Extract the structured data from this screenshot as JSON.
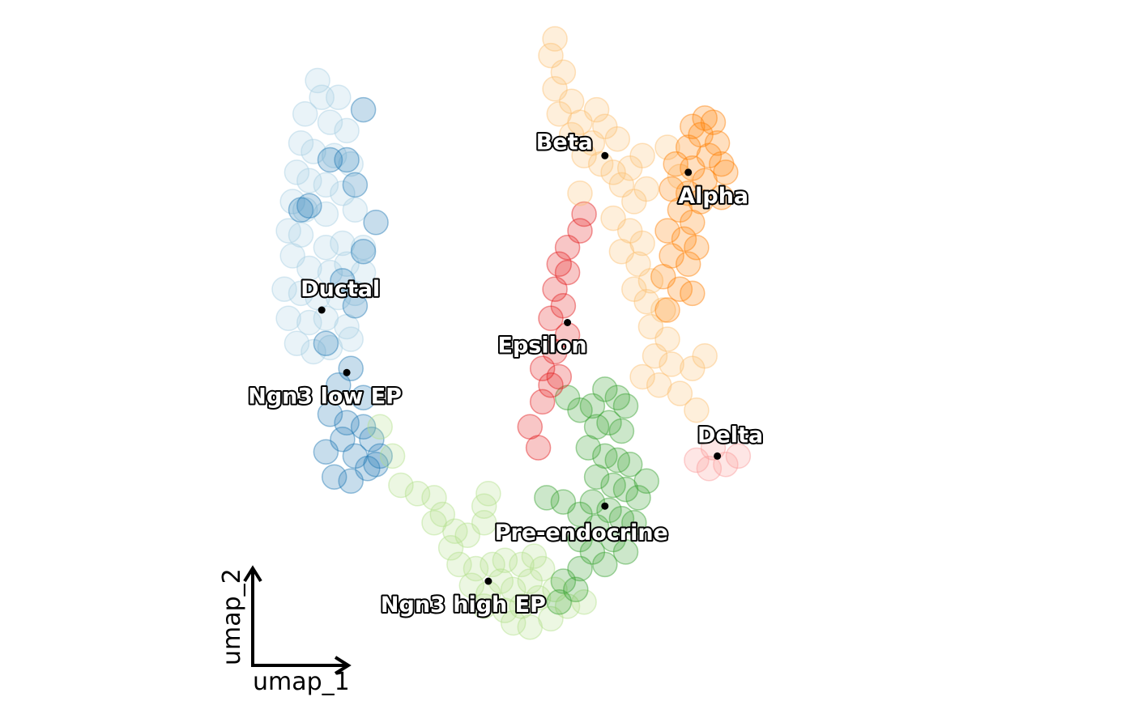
{
  "chart_data": {
    "type": "scatter",
    "title": "",
    "xlabel": "umap_1",
    "ylabel": "umap_2",
    "xlim": [
      -7,
      10
    ],
    "ylim": [
      -7.6,
      8
    ],
    "grid": false,
    "legend": "on data",
    "point_alpha": 0.25,
    "clusters": [
      {
        "name": "Ductal",
        "color": "#a6cee3",
        "center": [
          -4.0,
          1.5
        ],
        "points": [
          [
            -4.1,
            7.0
          ],
          [
            -4.0,
            6.6
          ],
          [
            -3.6,
            6.6
          ],
          [
            -4.4,
            6.2
          ],
          [
            -3.8,
            6.0
          ],
          [
            -3.4,
            5.8
          ],
          [
            -4.5,
            5.5
          ],
          [
            -4.2,
            5.3
          ],
          [
            -3.7,
            5.2
          ],
          [
            -3.3,
            5.0
          ],
          [
            -4.6,
            4.8
          ],
          [
            -4.3,
            4.6
          ],
          [
            -3.9,
            4.5
          ],
          [
            -3.5,
            4.3
          ],
          [
            -4.7,
            4.1
          ],
          [
            -4.4,
            3.9
          ],
          [
            -3.9,
            3.8
          ],
          [
            -3.2,
            3.9
          ],
          [
            -4.8,
            3.4
          ],
          [
            -4.5,
            3.3
          ],
          [
            -3.9,
            3.0
          ],
          [
            -3.5,
            3.1
          ],
          [
            -3.0,
            3.0
          ],
          [
            -4.7,
            2.8
          ],
          [
            -4.3,
            2.5
          ],
          [
            -3.8,
            2.4
          ],
          [
            -3.4,
            2.6
          ],
          [
            -3.0,
            2.4
          ],
          [
            -4.9,
            2.0
          ],
          [
            -4.5,
            1.9
          ],
          [
            -4.1,
            1.8
          ],
          [
            -3.6,
            1.8
          ],
          [
            -3.2,
            1.9
          ],
          [
            -4.8,
            1.3
          ],
          [
            -4.3,
            1.2
          ],
          [
            -3.9,
            1.3
          ],
          [
            -3.4,
            1.1
          ],
          [
            -4.6,
            0.7
          ],
          [
            -4.2,
            0.5
          ],
          [
            -3.8,
            0.6
          ],
          [
            -3.3,
            0.8
          ]
        ]
      },
      {
        "name": "Ngn3 low EP",
        "color": "#1f78b4",
        "center": [
          -3.4,
          0.0
        ],
        "points": [
          [
            -3.0,
            6.3
          ],
          [
            -3.4,
            5.1
          ],
          [
            -3.8,
            5.1
          ],
          [
            -3.2,
            4.5
          ],
          [
            -4.5,
            3.9
          ],
          [
            -4.3,
            4.0
          ],
          [
            -2.7,
            3.6
          ],
          [
            -3.0,
            2.9
          ],
          [
            -3.5,
            2.2
          ],
          [
            -3.2,
            1.6
          ],
          [
            -3.9,
            0.7
          ],
          [
            -3.3,
            0.1
          ],
          [
            -3.6,
            -0.3
          ],
          [
            -3.0,
            -0.6
          ],
          [
            -3.8,
            -1.0
          ],
          [
            -3.4,
            -1.2
          ],
          [
            -3.0,
            -1.3
          ],
          [
            -2.8,
            -1.6
          ],
          [
            -3.5,
            -1.6
          ],
          [
            -3.2,
            -2.0
          ],
          [
            -2.6,
            -2.0
          ],
          [
            -3.9,
            -1.9
          ],
          [
            -2.9,
            -2.3
          ],
          [
            -3.3,
            -2.6
          ],
          [
            -3.7,
            -2.5
          ],
          [
            -2.7,
            -2.2
          ]
        ]
      },
      {
        "name": "Ngn3 high EP",
        "color": "#b2df8a",
        "center": [
          0.0,
          -5.0
        ],
        "points": [
          [
            -2.6,
            -1.3
          ],
          [
            -2.3,
            -2.0
          ],
          [
            -2.1,
            -2.7
          ],
          [
            -1.7,
            -2.9
          ],
          [
            -1.3,
            -3.0
          ],
          [
            -1.1,
            -3.4
          ],
          [
            -0.8,
            -3.8
          ],
          [
            -0.5,
            -3.9
          ],
          [
            -1.3,
            -3.6
          ],
          [
            -0.9,
            -4.2
          ],
          [
            -0.7,
            -4.6
          ],
          [
            -0.3,
            -4.7
          ],
          [
            0.1,
            -4.6
          ],
          [
            0.4,
            -4.5
          ],
          [
            0.8,
            -4.6
          ],
          [
            1.1,
            -4.4
          ],
          [
            -0.4,
            -5.1
          ],
          [
            0.0,
            -5.3
          ],
          [
            0.3,
            -5.0
          ],
          [
            0.6,
            -5.2
          ],
          [
            1.0,
            -5.0
          ],
          [
            1.3,
            -4.7
          ],
          [
            -0.1,
            -5.6
          ],
          [
            0.4,
            -5.7
          ],
          [
            0.8,
            -5.6
          ],
          [
            1.2,
            -5.4
          ],
          [
            1.6,
            -5.2
          ],
          [
            0.6,
            -6.0
          ],
          [
            1.0,
            -6.1
          ],
          [
            1.5,
            -5.9
          ],
          [
            1.9,
            -5.6
          ],
          [
            2.3,
            -5.5
          ],
          [
            -0.1,
            -3.2
          ],
          [
            -0.1,
            -3.6
          ],
          [
            0.0,
            -2.9
          ]
        ]
      },
      {
        "name": "Pre-endocrine",
        "color": "#33a02c",
        "center": [
          2.8,
          -3.2
        ],
        "points": [
          [
            1.9,
            -0.6
          ],
          [
            2.2,
            -0.9
          ],
          [
            2.5,
            -0.8
          ],
          [
            2.8,
            -0.4
          ],
          [
            3.1,
            -0.6
          ],
          [
            3.3,
            -0.8
          ],
          [
            2.6,
            -1.3
          ],
          [
            2.9,
            -1.2
          ],
          [
            3.2,
            -1.4
          ],
          [
            2.4,
            -1.8
          ],
          [
            2.8,
            -2.0
          ],
          [
            3.1,
            -2.1
          ],
          [
            3.4,
            -2.2
          ],
          [
            2.6,
            -2.5
          ],
          [
            3.0,
            -2.7
          ],
          [
            3.3,
            -2.8
          ],
          [
            2.5,
            -3.1
          ],
          [
            2.9,
            -3.3
          ],
          [
            3.2,
            -3.5
          ],
          [
            3.5,
            -3.6
          ],
          [
            1.4,
            -3.0
          ],
          [
            1.8,
            -3.1
          ],
          [
            2.2,
            -3.4
          ],
          [
            2.6,
            -3.7
          ],
          [
            3.0,
            -4.0
          ],
          [
            3.3,
            -4.3
          ],
          [
            2.2,
            -4.0
          ],
          [
            2.5,
            -4.3
          ],
          [
            2.8,
            -4.6
          ],
          [
            2.2,
            -4.7
          ],
          [
            1.8,
            -5.0
          ],
          [
            2.1,
            -5.2
          ],
          [
            1.7,
            -5.5
          ],
          [
            3.6,
            -3.0
          ],
          [
            3.8,
            -2.6
          ]
        ]
      },
      {
        "name": "Epsilon",
        "color": "#e31a1c",
        "center": [
          1.9,
          1.2
        ],
        "points": [
          [
            2.3,
            3.8
          ],
          [
            2.2,
            3.4
          ],
          [
            1.9,
            3.0
          ],
          [
            1.7,
            2.6
          ],
          [
            1.9,
            2.4
          ],
          [
            1.6,
            2.0
          ],
          [
            1.8,
            1.6
          ],
          [
            1.5,
            1.3
          ],
          [
            1.9,
            0.9
          ],
          [
            1.6,
            0.5
          ],
          [
            1.3,
            0.1
          ],
          [
            1.5,
            -0.3
          ],
          [
            1.7,
            -0.1
          ],
          [
            1.3,
            -0.7
          ],
          [
            1.0,
            -1.3
          ],
          [
            1.2,
            -1.8
          ]
        ]
      },
      {
        "name": "Beta",
        "color": "#fdbf6f",
        "center": [
          2.8,
          5.2
        ],
        "points": [
          [
            1.6,
            8.0
          ],
          [
            1.5,
            7.6
          ],
          [
            1.8,
            7.2
          ],
          [
            1.6,
            6.8
          ],
          [
            2.0,
            6.5
          ],
          [
            1.7,
            6.2
          ],
          [
            2.2,
            6.0
          ],
          [
            2.6,
            6.3
          ],
          [
            2.8,
            5.9
          ],
          [
            3.1,
            5.6
          ],
          [
            2.5,
            5.5
          ],
          [
            2.0,
            5.7
          ],
          [
            2.3,
            5.2
          ],
          [
            2.7,
            5.0
          ],
          [
            3.0,
            4.8
          ],
          [
            3.4,
            4.9
          ],
          [
            3.7,
            5.2
          ],
          [
            3.2,
            4.5
          ],
          [
            3.5,
            4.1
          ],
          [
            3.8,
            4.4
          ],
          [
            3.0,
            3.7
          ],
          [
            3.4,
            3.4
          ],
          [
            3.7,
            3.1
          ],
          [
            3.2,
            2.9
          ],
          [
            3.6,
            2.6
          ],
          [
            3.9,
            2.2
          ],
          [
            3.5,
            2.0
          ],
          [
            3.8,
            1.7
          ],
          [
            4.2,
            1.5
          ],
          [
            3.9,
            1.1
          ],
          [
            4.3,
            0.8
          ],
          [
            4.0,
            0.4
          ],
          [
            4.4,
            0.2
          ],
          [
            3.7,
            -0.1
          ],
          [
            4.1,
            -0.3
          ],
          [
            4.6,
            -0.5
          ],
          [
            4.9,
            0.1
          ],
          [
            5.2,
            0.4
          ],
          [
            5.0,
            -0.9
          ],
          [
            4.6,
            4.7
          ],
          [
            4.3,
            5.4
          ],
          [
            2.2,
            4.3
          ]
        ]
      },
      {
        "name": "Alpha",
        "color": "#ff7f00",
        "center": [
          4.8,
          4.8
        ],
        "points": [
          [
            5.2,
            6.1
          ],
          [
            5.4,
            6.0
          ],
          [
            4.9,
            5.9
          ],
          [
            5.1,
            5.7
          ],
          [
            5.5,
            5.5
          ],
          [
            4.8,
            5.4
          ],
          [
            5.3,
            5.2
          ],
          [
            5.6,
            5.0
          ],
          [
            4.5,
            5.0
          ],
          [
            4.9,
            4.9
          ],
          [
            5.2,
            4.6
          ],
          [
            4.4,
            4.4
          ],
          [
            4.8,
            4.3
          ],
          [
            5.1,
            4.1
          ],
          [
            4.6,
            3.9
          ],
          [
            4.9,
            3.6
          ],
          [
            4.3,
            3.4
          ],
          [
            4.7,
            3.2
          ],
          [
            5.0,
            3.0
          ],
          [
            4.4,
            2.8
          ],
          [
            4.8,
            2.6
          ],
          [
            4.2,
            2.3
          ],
          [
            4.6,
            2.0
          ],
          [
            4.9,
            1.9
          ],
          [
            4.3,
            1.5
          ],
          [
            5.7,
            4.8
          ],
          [
            5.6,
            4.2
          ]
        ]
      },
      {
        "name": "Delta",
        "color": "#fb9a99",
        "center": [
          5.5,
          -2.0
        ],
        "points": [
          [
            5.0,
            -2.1
          ],
          [
            5.3,
            -2.3
          ],
          [
            5.7,
            -2.2
          ],
          [
            6.0,
            -2.0
          ],
          [
            5.4,
            -1.8
          ]
        ]
      }
    ]
  },
  "axis_arrow": {
    "x_label": "umap_1",
    "y_label": "umap_2"
  }
}
